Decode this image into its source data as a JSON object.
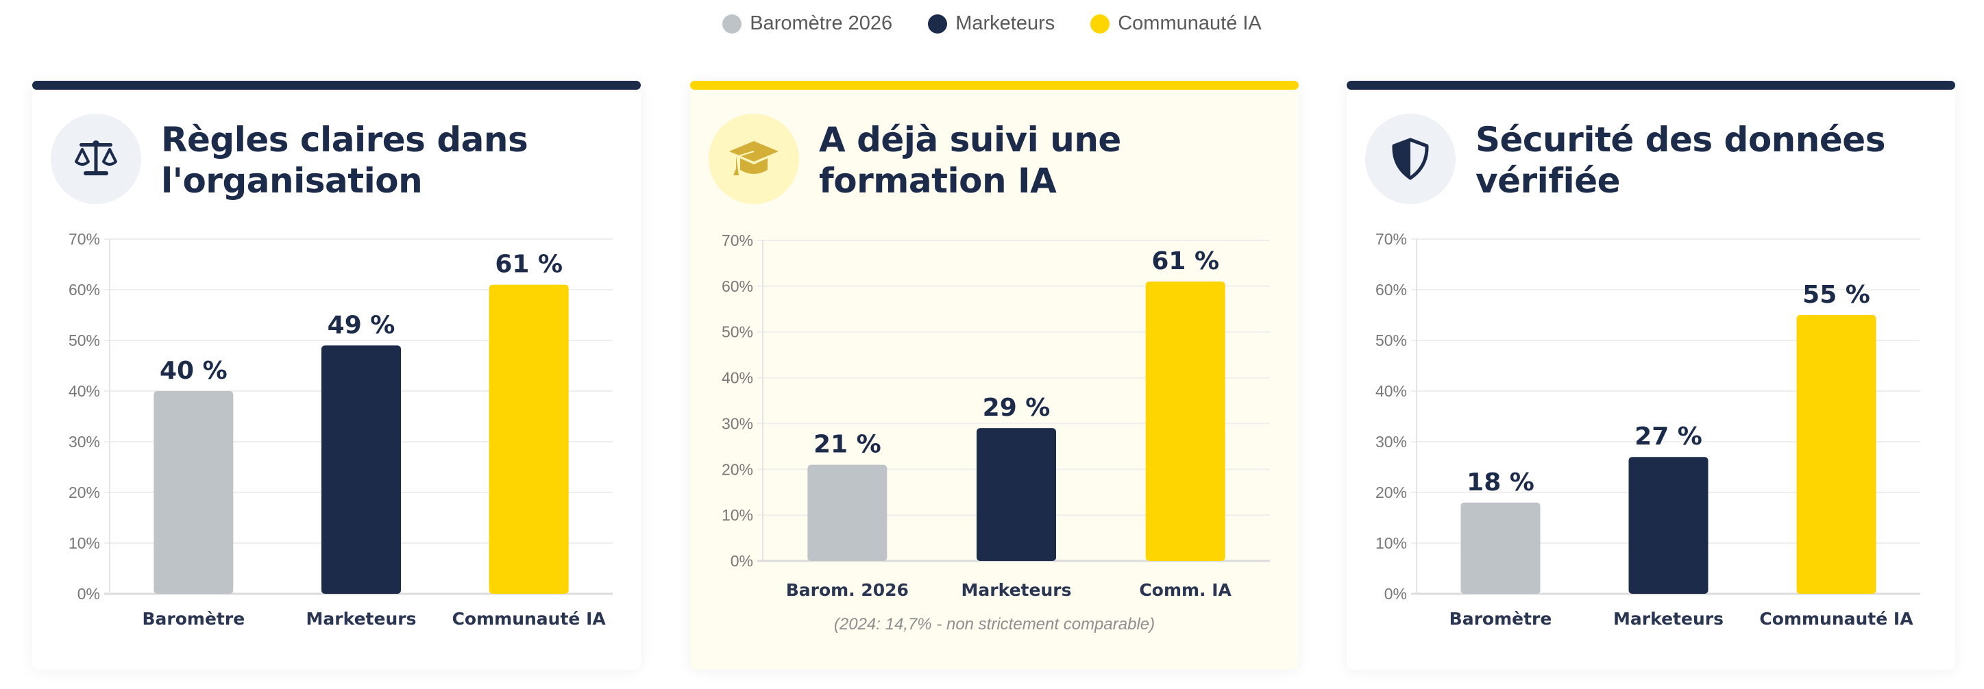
{
  "legend": [
    {
      "label": "Baromètre 2026",
      "color": "#bec3c7"
    },
    {
      "label": "Marketeurs",
      "color": "#1c2b4a"
    },
    {
      "label": "Communauté IA",
      "color": "#ffd500"
    }
  ],
  "cards": [
    {
      "title": "Règles claires dans l'organisation",
      "icon": "scale-icon",
      "accent": "#1c2b4a",
      "highlight": false
    },
    {
      "title": "A déjà suivi une formation IA",
      "icon": "graduation-cap-icon",
      "accent": "#ffd500",
      "highlight": true,
      "note": "(2024: 14,7% - non strictement comparable)"
    },
    {
      "title": "Sécurité des données vérifiée",
      "icon": "shield-icon",
      "accent": "#1c2b4a",
      "highlight": false
    }
  ],
  "chart_data": [
    {
      "type": "bar",
      "title": "Règles claires dans l'organisation",
      "categories": [
        "Baromètre",
        "Marketeurs",
        "Communauté IA"
      ],
      "values": [
        40,
        49,
        61
      ],
      "value_labels": [
        "40 %",
        "49 %",
        "61 %"
      ],
      "colors": [
        "#bec3c7",
        "#1c2b4a",
        "#ffd500"
      ],
      "yticks": [
        "0%",
        "10%",
        "20%",
        "30%",
        "40%",
        "50%",
        "60%",
        "70%"
      ],
      "ylim": [
        0,
        70
      ],
      "grid": true
    },
    {
      "type": "bar",
      "title": "A déjà suivi une formation IA",
      "categories": [
        "Barom. 2026",
        "Marketeurs",
        "Comm. IA"
      ],
      "values": [
        21,
        29,
        61
      ],
      "value_labels": [
        "21 %",
        "29 %",
        "61 %"
      ],
      "colors": [
        "#bec3c7",
        "#1c2b4a",
        "#ffd500"
      ],
      "yticks": [
        "0%",
        "10%",
        "20%",
        "30%",
        "40%",
        "50%",
        "60%",
        "70%"
      ],
      "ylim": [
        0,
        70
      ],
      "grid": true
    },
    {
      "type": "bar",
      "title": "Sécurité des données vérifiée",
      "categories": [
        "Baromètre",
        "Marketeurs",
        "Communauté IA"
      ],
      "values": [
        18,
        27,
        55
      ],
      "value_labels": [
        "18 %",
        "27 %",
        "55 %"
      ],
      "colors": [
        "#bec3c7",
        "#1c2b4a",
        "#ffd500"
      ],
      "yticks": [
        "0%",
        "10%",
        "20%",
        "30%",
        "40%",
        "50%",
        "60%",
        "70%"
      ],
      "ylim": [
        0,
        70
      ],
      "grid": true
    }
  ]
}
